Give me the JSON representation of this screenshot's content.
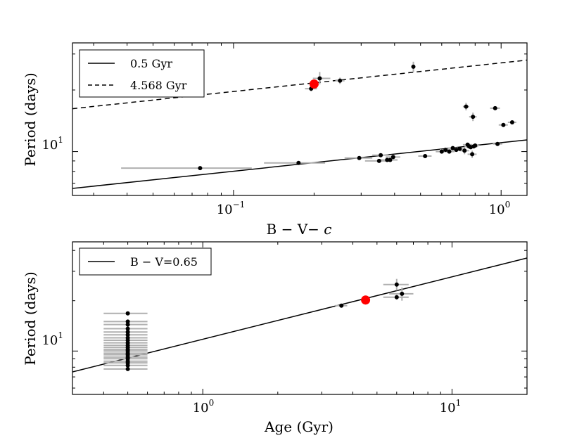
{
  "chart_data": [
    {
      "type": "scatter",
      "xscale": "log",
      "yscale": "log",
      "xlabel_parts": [
        "B − V− ",
        "c"
      ],
      "ylabel": "Period (days)",
      "xlim": [
        0.025,
        1.25
      ],
      "ylim": [
        6.1,
        34
      ],
      "xticks": [
        {
          "value": 0.1,
          "base": "10",
          "exp": "−1"
        },
        {
          "value": 1.0,
          "base": "10",
          "exp": "0"
        }
      ],
      "yticks": [
        {
          "value": 10,
          "base": "10",
          "exp": "1"
        }
      ],
      "legend": {
        "placement": "top-left",
        "entries": [
          {
            "label": "0.5 Gyr",
            "style": "solid"
          },
          {
            "label": "4.568 Gyr",
            "style": "dashed"
          }
        ]
      },
      "lines": [
        {
          "name": "0.5 Gyr",
          "style": "solid",
          "x": [
            0.025,
            1.25
          ],
          "y": [
            6.6,
            11.4
          ]
        },
        {
          "name": "4.568 Gyr",
          "style": "dashed",
          "x": [
            0.025,
            1.25
          ],
          "y": [
            16.2,
            28.0
          ]
        }
      ],
      "points": [
        {
          "x": 0.075,
          "y": 8.3,
          "xerr": [
            0.038,
            0.117
          ]
        },
        {
          "x": 0.175,
          "y": 8.8,
          "xerr": [
            0.13,
            0.22
          ]
        },
        {
          "x": 0.195,
          "y": 20.3,
          "xerr": [
            0.185,
            0.205
          ],
          "yerr": [
            19.7,
            21.0
          ]
        },
        {
          "x": 0.21,
          "y": 22.8,
          "xerr": [
            0.198,
            0.23
          ],
          "yerr": [
            21.3,
            24.5
          ]
        },
        {
          "x": 0.25,
          "y": 22.2,
          "xerr": [
            0.24,
            0.26
          ],
          "yerr": [
            21.4,
            23.0
          ]
        },
        {
          "x": 0.295,
          "y": 9.3,
          "xerr": [
            0.26,
            0.33
          ]
        },
        {
          "x": 0.35,
          "y": 9.0,
          "xerr": [
            0.31,
            0.39
          ]
        },
        {
          "x": 0.355,
          "y": 9.6,
          "xerr": [
            0.33,
            0.38
          ]
        },
        {
          "x": 0.375,
          "y": 9.1,
          "xerr": [
            0.35,
            0.41
          ]
        },
        {
          "x": 0.385,
          "y": 9.1,
          "xerr": [
            0.36,
            0.41
          ]
        },
        {
          "x": 0.395,
          "y": 9.4,
          "xerr": [
            0.37,
            0.42
          ]
        },
        {
          "x": 0.47,
          "y": 26.0,
          "xerr": [
            0.465,
            0.475
          ],
          "yerr": [
            24.5,
            27.5
          ]
        },
        {
          "x": 0.52,
          "y": 9.5,
          "xerr": [
            0.49,
            0.55
          ]
        },
        {
          "x": 0.6,
          "y": 10.0,
          "xerr": [
            0.57,
            0.63
          ]
        },
        {
          "x": 0.62,
          "y": 10.2,
          "xerr": [
            0.59,
            0.65
          ]
        },
        {
          "x": 0.64,
          "y": 10.0,
          "xerr": [
            0.61,
            0.67
          ]
        },
        {
          "x": 0.66,
          "y": 10.4,
          "xerr": [
            0.63,
            0.69
          ]
        },
        {
          "x": 0.68,
          "y": 10.2,
          "xerr": [
            0.65,
            0.71
          ]
        },
        {
          "x": 0.7,
          "y": 10.3,
          "xerr": [
            0.67,
            0.73
          ]
        },
        {
          "x": 0.73,
          "y": 10.1,
          "xerr": [
            0.7,
            0.76
          ],
          "yerr": [
            9.7,
            10.5
          ]
        },
        {
          "x": 0.74,
          "y": 16.6,
          "xerr": [
            0.72,
            0.76
          ],
          "yerr": [
            15.9,
            17.3
          ]
        },
        {
          "x": 0.75,
          "y": 10.8,
          "xerr": [
            0.72,
            0.78
          ]
        },
        {
          "x": 0.76,
          "y": 10.6,
          "xerr": [
            0.73,
            0.79
          ]
        },
        {
          "x": 0.77,
          "y": 10.5,
          "xerr": [
            0.74,
            0.8
          ]
        },
        {
          "x": 0.78,
          "y": 9.7,
          "xerr": [
            0.75,
            0.81
          ],
          "yerr": [
            9.3,
            10.1
          ]
        },
        {
          "x": 0.785,
          "y": 14.8,
          "xerr": [
            0.76,
            0.81
          ],
          "yerr": [
            14.1,
            15.5
          ]
        },
        {
          "x": 0.79,
          "y": 10.6,
          "xerr": [
            0.76,
            0.82
          ]
        },
        {
          "x": 0.8,
          "y": 10.7,
          "xerr": [
            0.77,
            0.83
          ]
        },
        {
          "x": 0.95,
          "y": 16.3,
          "xerr": [
            0.91,
            0.99
          ]
        },
        {
          "x": 0.97,
          "y": 10.9,
          "xerr": [
            0.93,
            1.01
          ]
        },
        {
          "x": 1.02,
          "y": 13.5,
          "xerr": [
            0.98,
            1.06
          ]
        },
        {
          "x": 1.1,
          "y": 13.9,
          "xerr": [
            1.06,
            1.14
          ]
        }
      ],
      "highlight": {
        "x": 0.2,
        "y": 21.4,
        "color": "#ff0000"
      }
    },
    {
      "type": "scatter",
      "xscale": "log",
      "yscale": "log",
      "xlabel": "Age (Gyr)",
      "ylabel": "Period (days)",
      "xlim": [
        0.3,
        20
      ],
      "ylim": [
        5.5,
        45
      ],
      "xticks": [
        {
          "value": 1,
          "base": "10",
          "exp": "0"
        },
        {
          "value": 10,
          "base": "10",
          "exp": "1"
        }
      ],
      "yticks": [
        {
          "value": 10,
          "base": "10",
          "exp": "1"
        }
      ],
      "legend": {
        "placement": "top-left",
        "entries": [
          {
            "label": "B − V=0.65",
            "style": "solid"
          }
        ]
      },
      "lines": [
        {
          "name": "B − V=0.65",
          "style": "solid",
          "x": [
            0.3,
            20
          ],
          "y": [
            7.5,
            36.0
          ]
        }
      ],
      "points": [
        {
          "x": 0.5,
          "y": 16.8,
          "xerr": [
            0.4,
            0.6
          ]
        },
        {
          "x": 0.5,
          "y": 15.0,
          "xerr": [
            0.4,
            0.6
          ]
        },
        {
          "x": 0.5,
          "y": 14.4,
          "xerr": [
            0.4,
            0.6
          ]
        },
        {
          "x": 0.5,
          "y": 13.6,
          "xerr": [
            0.4,
            0.6
          ]
        },
        {
          "x": 0.5,
          "y": 13.0,
          "xerr": [
            0.4,
            0.6
          ]
        },
        {
          "x": 0.5,
          "y": 12.5,
          "xerr": [
            0.4,
            0.6
          ]
        },
        {
          "x": 0.5,
          "y": 12.0,
          "xerr": [
            0.4,
            0.6
          ]
        },
        {
          "x": 0.5,
          "y": 11.6,
          "xerr": [
            0.4,
            0.6
          ]
        },
        {
          "x": 0.5,
          "y": 11.2,
          "xerr": [
            0.4,
            0.6
          ]
        },
        {
          "x": 0.5,
          "y": 10.8,
          "xerr": [
            0.4,
            0.6
          ]
        },
        {
          "x": 0.5,
          "y": 10.5,
          "xerr": [
            0.4,
            0.6
          ]
        },
        {
          "x": 0.5,
          "y": 10.2,
          "xerr": [
            0.4,
            0.6
          ]
        },
        {
          "x": 0.5,
          "y": 10.0,
          "xerr": [
            0.4,
            0.6
          ]
        },
        {
          "x": 0.5,
          "y": 9.7,
          "xerr": [
            0.4,
            0.6
          ]
        },
        {
          "x": 0.5,
          "y": 9.5,
          "xerr": [
            0.4,
            0.6
          ]
        },
        {
          "x": 0.5,
          "y": 9.2,
          "xerr": [
            0.4,
            0.6
          ]
        },
        {
          "x": 0.5,
          "y": 9.0,
          "xerr": [
            0.4,
            0.6
          ]
        },
        {
          "x": 0.5,
          "y": 8.7,
          "xerr": [
            0.4,
            0.6
          ]
        },
        {
          "x": 0.5,
          "y": 8.5,
          "xerr": [
            0.4,
            0.6
          ]
        },
        {
          "x": 0.5,
          "y": 8.2,
          "xerr": [
            0.4,
            0.6
          ]
        },
        {
          "x": 0.5,
          "y": 7.8,
          "xerr": [
            0.4,
            0.6
          ]
        },
        {
          "x": 3.6,
          "y": 18.7,
          "xerr": [
            3.4,
            3.8
          ]
        },
        {
          "x": 6.0,
          "y": 21.0,
          "xerr": [
            5.3,
            6.7
          ],
          "yerr": [
            20.3,
            21.7
          ]
        },
        {
          "x": 6.0,
          "y": 25.0,
          "xerr": [
            5.3,
            6.7
          ],
          "yerr": [
            23.0,
            27.0
          ]
        },
        {
          "x": 6.3,
          "y": 22.0,
          "xerr": [
            5.6,
            7.0
          ],
          "yerr": [
            20.0,
            24.0
          ]
        }
      ],
      "highlight": {
        "x": 4.5,
        "y": 20.2,
        "color": "#ff0000"
      }
    }
  ]
}
